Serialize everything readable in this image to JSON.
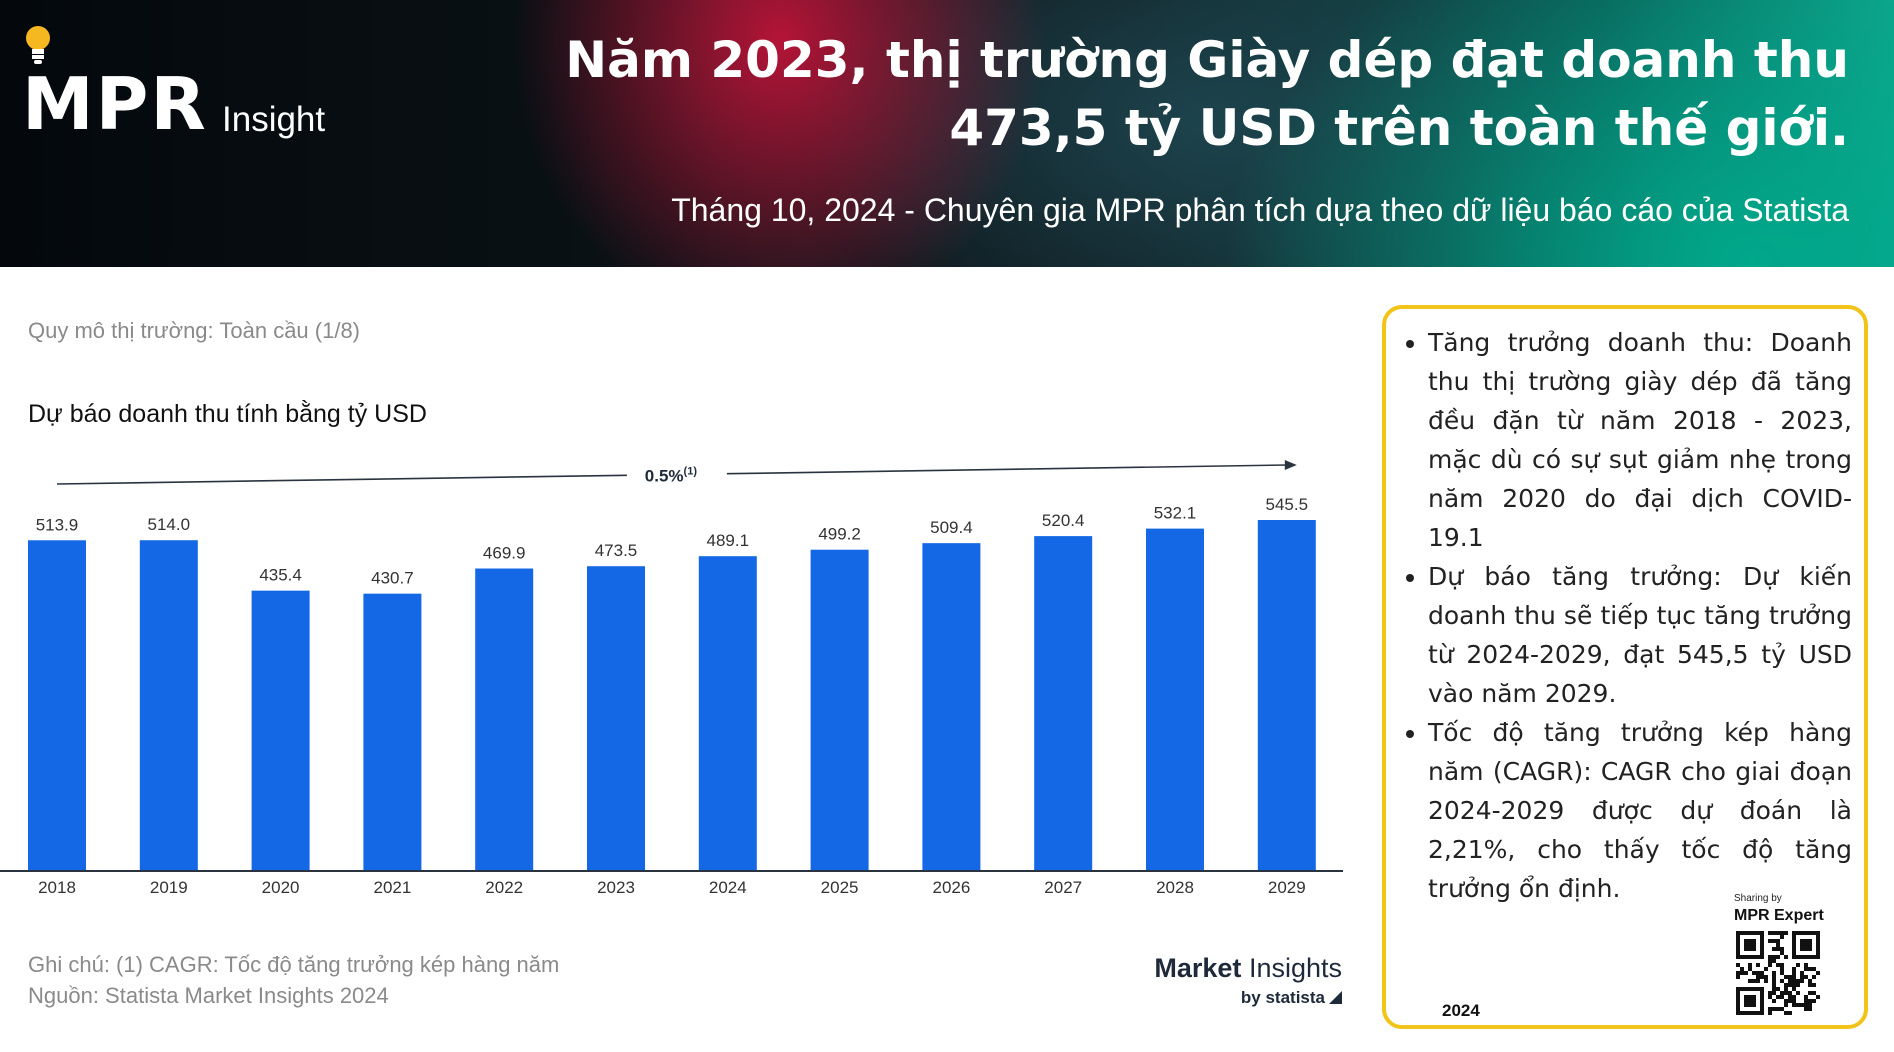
{
  "header": {
    "logo_mpr": "MPR",
    "logo_insight": "Insight",
    "title": "Năm 2023, thị trường Giày dép đạt doanh thu 473,5 tỷ USD trên toàn thế giới.",
    "subtitle": "Tháng 10, 2024 - Chuyên gia MPR phân tích dựa theo dữ liệu báo cáo của Statista"
  },
  "chart_data": {
    "type": "bar",
    "categories": [
      "2018",
      "2019",
      "2020",
      "2021",
      "2022",
      "2023",
      "2024",
      "2025",
      "2026",
      "2027",
      "2028",
      "2029"
    ],
    "values": [
      513.9,
      514.0,
      435.4,
      430.7,
      469.9,
      473.5,
      489.1,
      499.2,
      509.4,
      520.4,
      532.1,
      545.5
    ],
    "value_labels": [
      "513.9",
      "514.0",
      "435.4",
      "430.7",
      "469.9",
      "473.5",
      "489.1",
      "499.2",
      "509.4",
      "520.4",
      "532.1",
      "545.5"
    ],
    "title": "Dự báo doanh thu tính bằng tỷ USD",
    "caption": "Quy mô thị trường: Toàn cầu (1/8)",
    "ylim": [
      0,
      545.5
    ],
    "annotation": {
      "label": "0.5%",
      "superscript": "(1)",
      "from": "2018",
      "to": "2029"
    },
    "bar_color": "#1468e6",
    "grid": false
  },
  "notes": {
    "note": "Ghi chú:  (1) CAGR: Tốc độ tăng trưởng kép hàng năm",
    "source": "Nguồn: Statista Market Insights 2024"
  },
  "brand": {
    "market": "Market",
    "insights": "Insights",
    "by_statista": "by statista"
  },
  "info_box": {
    "bullets": [
      "Tăng trưởng doanh thu: Doanh thu thị trường giày dép đã tăng đều đặn từ năm 2018 - 2023, mặc dù có sự sụt giảm nhẹ trong năm 2020 do đại dịch COVID-19.1",
      "Dự báo tăng trưởng: Dự kiến doanh thu sẽ tiếp tục tăng trưởng từ 2024-2029, đạt 545,5 tỷ USD vào năm 2029.",
      "Tốc độ tăng trưởng kép hàng năm (CAGR): CAGR cho giai đoạn 2024-2029 được dự đoán là 2,21%, cho thấy tốc độ tăng trưởng ổn định."
    ],
    "year": "2024",
    "sharing_by": "Sharing by",
    "mpr_expert": "MPR Expert",
    "border_color": "#f2c318"
  }
}
